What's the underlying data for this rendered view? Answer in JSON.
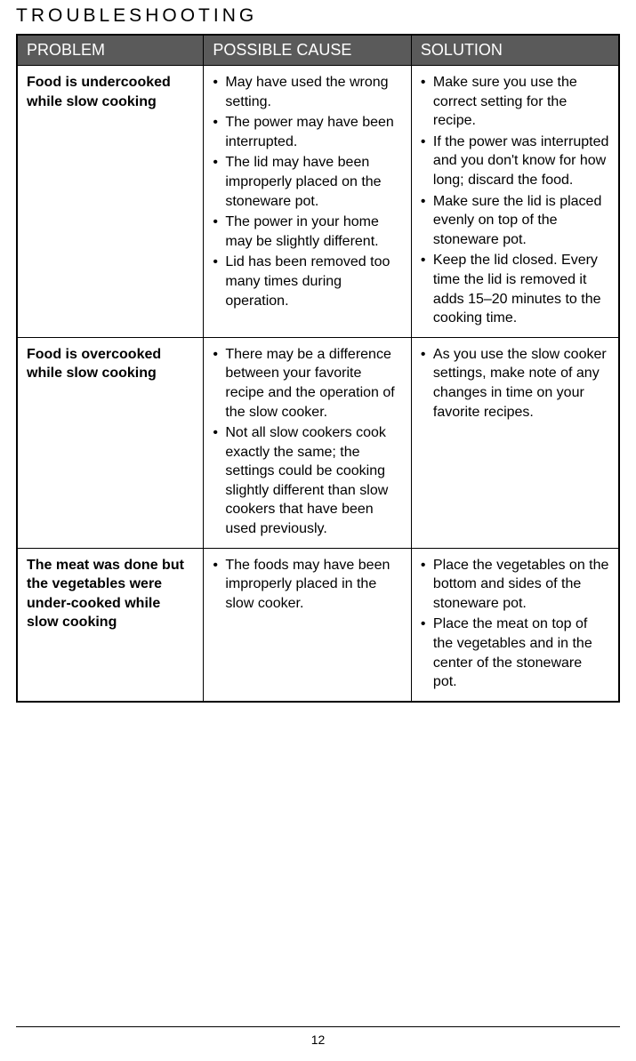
{
  "title": "TROUBLESHOOTING",
  "columns": [
    "PROBLEM",
    "POSSIBLE CAUSE",
    "SOLUTION"
  ],
  "header_bg": "#5a5a5a",
  "header_text_color": "#ffffff",
  "border_color": "#000000",
  "rows": [
    {
      "problem": "Food is undercooked while slow cooking",
      "causes": [
        "May have used the wrong setting.",
        "The power may have been interrupted.",
        "The lid may have been improperly placed on the stoneware pot.",
        "The power in your home may be slightly different.",
        "Lid has been removed too many times during operation."
      ],
      "solutions": [
        "Make sure you use the correct setting for the recipe.",
        "If the power was interrupted and you don't know for how long; discard the food.",
        "Make sure the lid is placed evenly on top of the stoneware pot.",
        "Keep the lid closed. Every time the lid is removed it adds 15–20 minutes to the cooking time."
      ]
    },
    {
      "problem": "Food is overcooked while slow cooking",
      "causes": [
        "There may be a difference between your favorite recipe and the operation of the slow cooker.",
        "Not all slow cookers cook exactly the same; the settings could be cooking slightly different than slow cookers that have been used previously."
      ],
      "solutions": [
        "As you use the slow cooker settings, make note of any changes in time on your favorite recipes."
      ]
    },
    {
      "problem": "The meat was done but the vegetables were under-cooked while slow cooking",
      "causes": [
        "The foods may have been improperly placed in the slow cooker."
      ],
      "solutions": [
        "Place the vegetables on the bottom and sides of the stoneware pot.",
        "Place the meat on top of the vegetables and in the center of the stoneware pot."
      ]
    }
  ],
  "page_number": "12"
}
